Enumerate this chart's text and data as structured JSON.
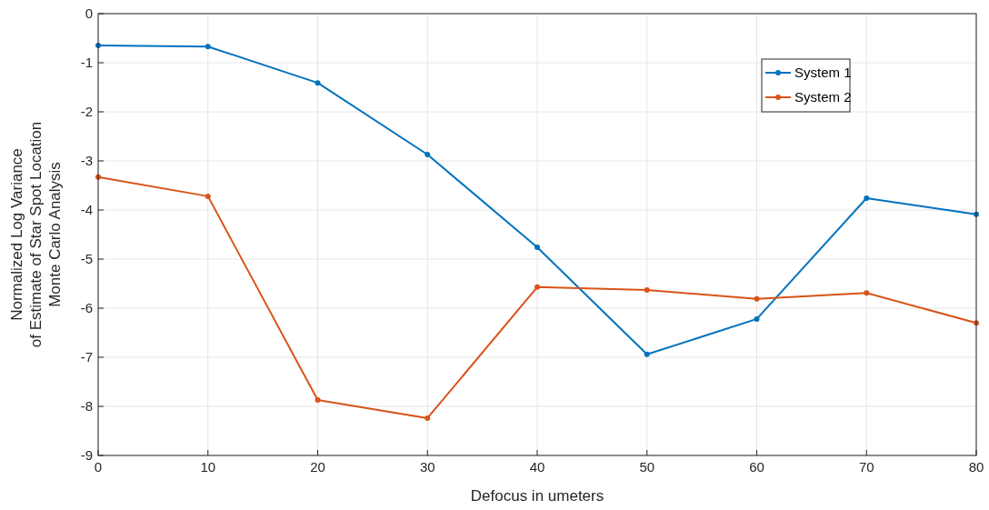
{
  "chart_data": {
    "type": "line",
    "xlabel": "Defocus in umeters",
    "ylabel": "Normalized Log Variance\nof Estimate of Star Spot Location\nMonte Carlo Analysis",
    "x": [
      0,
      10,
      20,
      30,
      40,
      50,
      60,
      70,
      80
    ],
    "series": [
      {
        "name": "System 1",
        "color": "#0072bd",
        "values": [
          -0.65,
          -0.67,
          -1.41,
          -2.87,
          -4.76,
          -6.94,
          -6.22,
          -3.76,
          -4.09
        ]
      },
      {
        "name": "System 2",
        "color": "#d95319",
        "values": [
          -3.33,
          -3.72,
          -7.87,
          -8.24,
          -5.57,
          -5.63,
          -5.81,
          -5.69,
          -6.3
        ]
      }
    ],
    "xlim": [
      0,
      80
    ],
    "xticks": [
      0,
      10,
      20,
      30,
      40,
      50,
      60,
      70,
      80
    ],
    "ylim": [
      -9,
      0
    ],
    "yticks": [
      -9,
      -8,
      -7,
      -6,
      -5,
      -4,
      -3,
      -2,
      -1,
      0
    ],
    "grid": true,
    "legend": "top right",
    "marker": "circle",
    "line_style": "solid"
  }
}
